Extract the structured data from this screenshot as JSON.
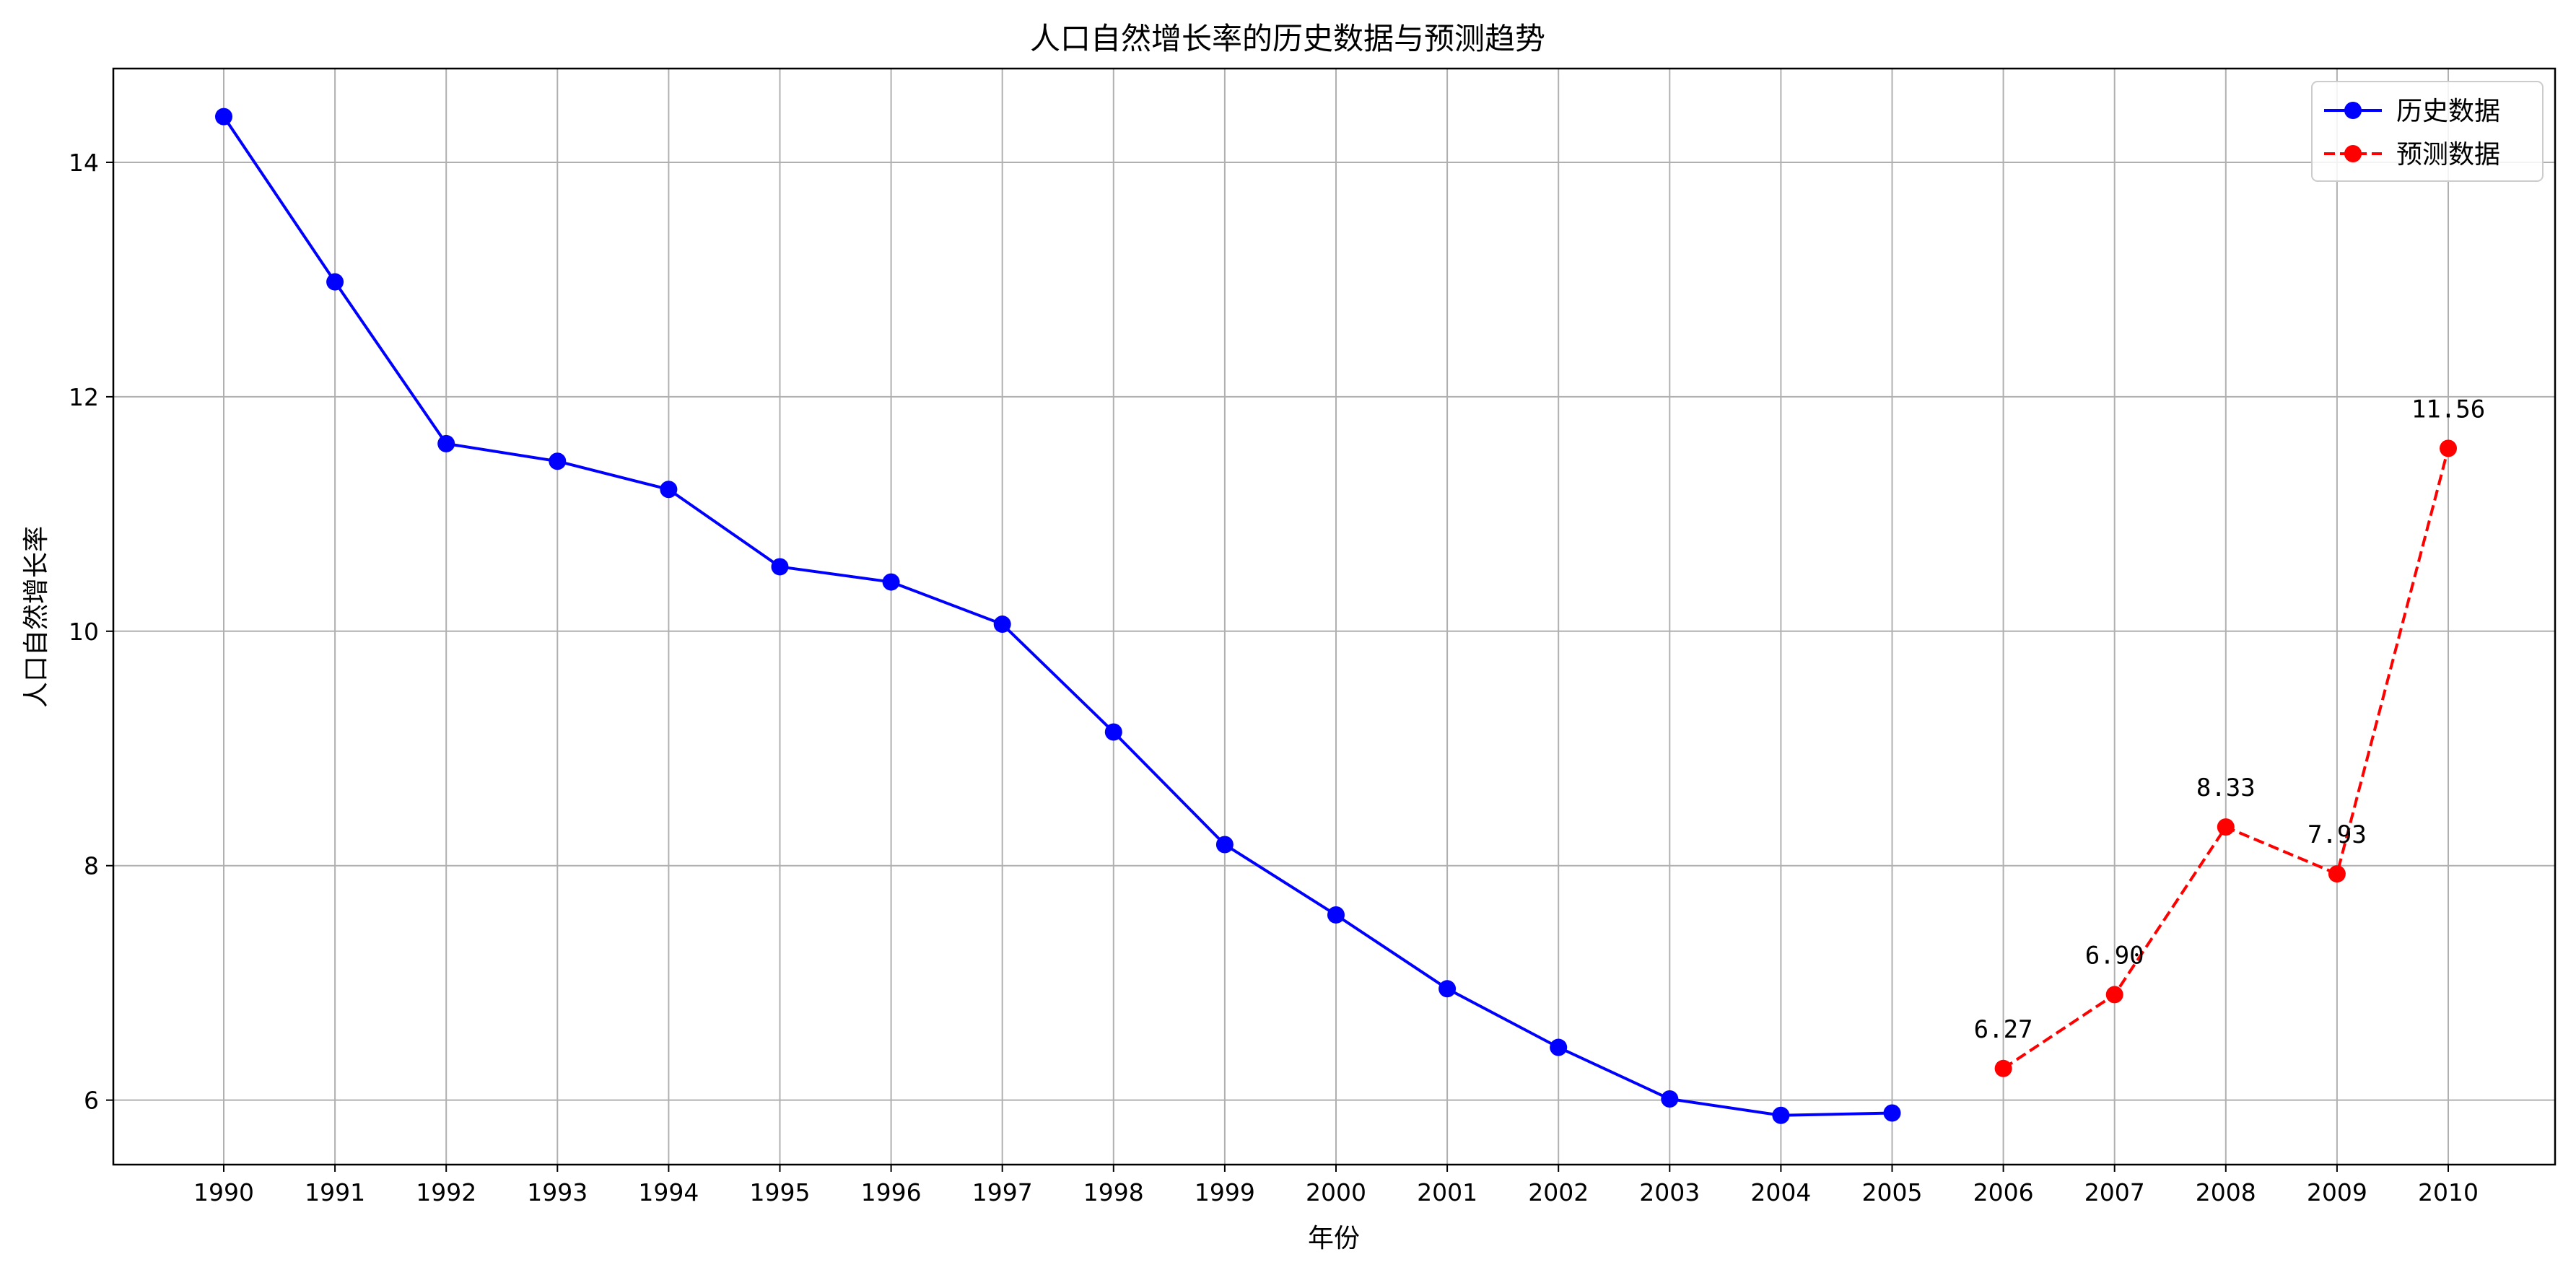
{
  "chart_data": {
    "type": "line",
    "title": "人口自然增长率的历史数据与预测趋势",
    "xlabel": "年份",
    "ylabel": "人口自然增长率",
    "categories": [
      "1990",
      "1991",
      "1992",
      "1993",
      "1994",
      "1995",
      "1996",
      "1997",
      "1998",
      "1999",
      "2000",
      "2001",
      "2002",
      "2003",
      "2004",
      "2005",
      "2006",
      "2007",
      "2008",
      "2009",
      "2010"
    ],
    "yticks": [
      "6",
      "8",
      "10",
      "12",
      "14"
    ],
    "ylim": [
      5.45,
      14.8
    ],
    "grid": true,
    "legend_position": "top-right",
    "series": [
      {
        "name": "历史数据",
        "color": "#0000ff",
        "line_style": "solid",
        "marker": "circle",
        "x": [
          "1990",
          "1991",
          "1992",
          "1993",
          "1994",
          "1995",
          "1996",
          "1997",
          "1998",
          "1999",
          "2000",
          "2001",
          "2002",
          "2003",
          "2004",
          "2005"
        ],
        "values": [
          14.39,
          12.98,
          11.6,
          11.45,
          11.21,
          10.55,
          10.42,
          10.06,
          9.14,
          8.18,
          7.58,
          6.95,
          6.45,
          6.01,
          5.87,
          5.89
        ]
      },
      {
        "name": "预测数据",
        "color": "#ff0000",
        "line_style": "dashed",
        "marker": "circle",
        "x": [
          "2006",
          "2007",
          "2008",
          "2009",
          "2010"
        ],
        "values": [
          6.27,
          6.9,
          8.33,
          7.93,
          11.56
        ],
        "labels": [
          "6.27",
          "6.90",
          "8.33",
          "7.93",
          "11.56"
        ]
      }
    ]
  }
}
